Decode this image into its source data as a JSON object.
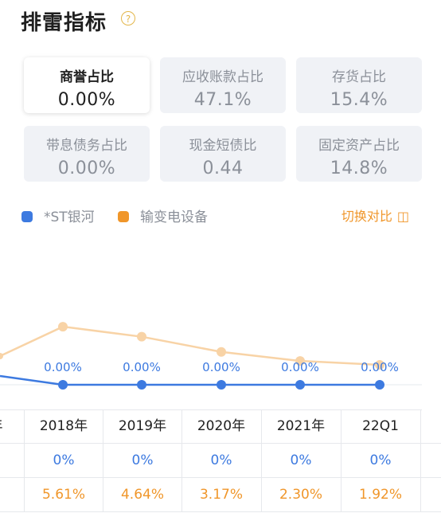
{
  "header": {
    "title": "排雷指标",
    "help_glyph": "?"
  },
  "cards": [
    {
      "label": "商誉占比",
      "value": "0.00%",
      "active": true
    },
    {
      "label": "应收账款占比",
      "value": "47.1%",
      "active": false
    },
    {
      "label": "存货占比",
      "value": "15.4%",
      "active": false
    },
    {
      "label": "带息债务占比",
      "value": "0.00%",
      "active": false
    },
    {
      "label": "现金短债比",
      "value": "0.44",
      "active": false
    },
    {
      "label": "固定资产占比",
      "value": "14.8%",
      "active": false
    }
  ],
  "legend": {
    "company": {
      "name": "*ST银河",
      "color": "#3d7ae0"
    },
    "industry": {
      "name": "输变电设备",
      "color": "#f0962a"
    }
  },
  "switch_label": "切换对比",
  "switch_icon": "compare-icon",
  "chart_data": {
    "type": "line",
    "categories": [
      "年",
      "2018年",
      "2019年",
      "2020年",
      "2021年",
      "22Q1"
    ],
    "series": [
      {
        "name": "*ST银河",
        "values": [
          null,
          0,
          0,
          0,
          0,
          0
        ],
        "labels": [
          "",
          "0.00%",
          "0.00%",
          "0.00%",
          "0.00%",
          "0.00%"
        ]
      },
      {
        "name": "输变电设备",
        "values": [
          null,
          5.61,
          4.64,
          3.17,
          2.3,
          1.92
        ]
      }
    ]
  },
  "table": {
    "headers": [
      "年",
      "2018年",
      "2019年",
      "2020年",
      "2021年",
      "22Q1"
    ],
    "company_row": [
      "%",
      "0%",
      "0%",
      "0%",
      "0%",
      "0%"
    ],
    "industry_row": [
      "%",
      "5.61%",
      "4.64%",
      "3.17%",
      "2.30%",
      "1.92%"
    ]
  }
}
